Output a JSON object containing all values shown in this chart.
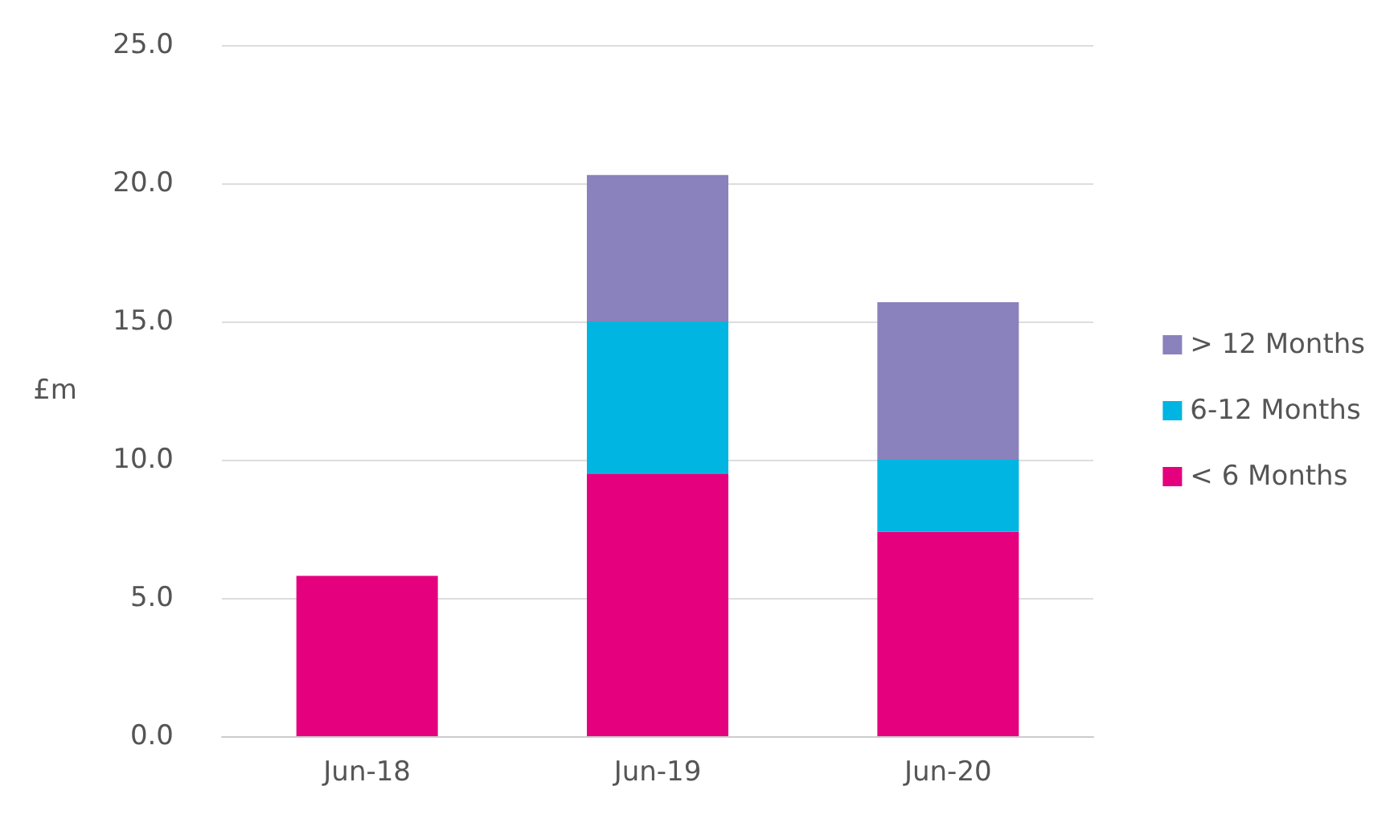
{
  "chart_data": {
    "type": "bar",
    "stacked": true,
    "ylabel": "£m",
    "categories": [
      "Jun-18",
      "Jun-19",
      "Jun-20"
    ],
    "series": [
      {
        "name": "< 6 Months",
        "color": "#e5007e",
        "values": [
          5.8,
          9.5,
          7.4
        ]
      },
      {
        "name": "6-12 Months",
        "color": "#00b5e2",
        "values": [
          null,
          5.5,
          2.6
        ]
      },
      {
        "name": "> 12 Months",
        "color": "#8a82bc",
        "values": [
          null,
          5.3,
          5.7
        ]
      }
    ],
    "ylim": [
      0,
      25
    ],
    "yticks": [
      {
        "value": 0,
        "label": "0.0"
      },
      {
        "value": 5,
        "label": "5.0"
      },
      {
        "value": 10,
        "label": "10.0"
      },
      {
        "value": 15,
        "label": "15.0"
      },
      {
        "value": 20,
        "label": "20.0"
      },
      {
        "value": 25,
        "label": "25.0"
      }
    ],
    "grid": "y",
    "legend": "right"
  }
}
